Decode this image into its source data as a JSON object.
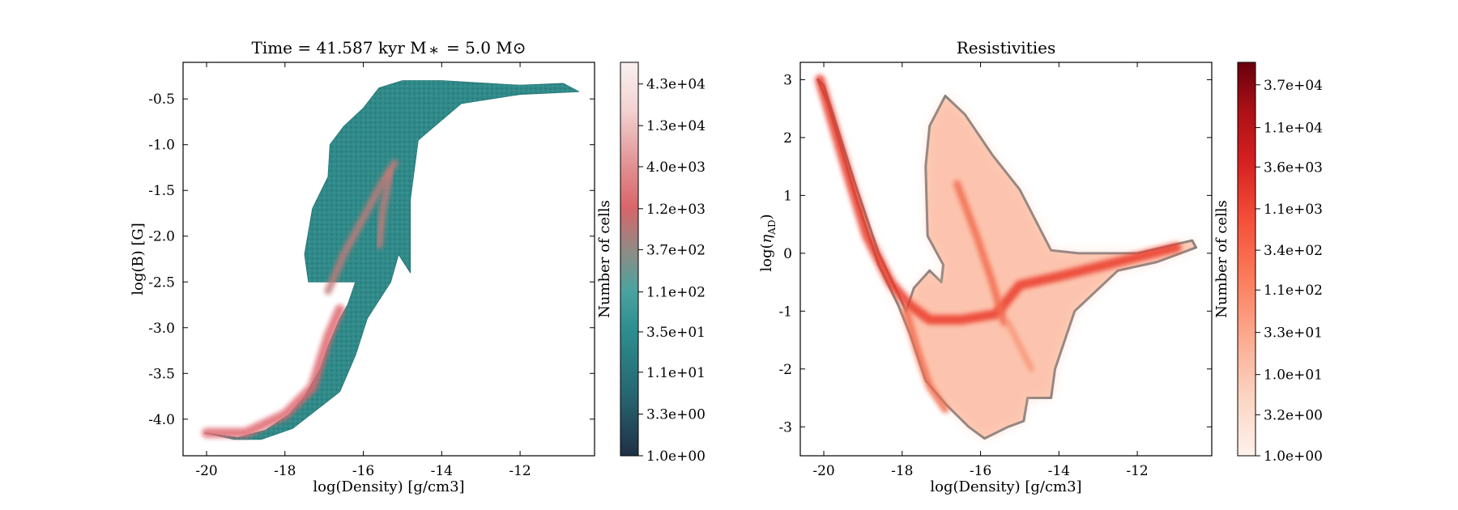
{
  "chart_data": [
    {
      "type": "heatmap",
      "title": "Time = 41.587 kyr    M$_*$ = 5.0 M$_\\odot$",
      "title_display": "Time = 41.587 kyr    M ⁎  = 5.0 M⊙",
      "xlabel": "log(Density) [g/cm3]",
      "ylabel": "log(B) [G]",
      "xlim": [
        -20.6,
        -10.1
      ],
      "ylim": [
        -4.4,
        -0.1
      ],
      "xticks": [
        -20,
        -18,
        -16,
        -14,
        -12
      ],
      "yticks": [
        -4.0,
        -3.5,
        -3.0,
        -2.5,
        -2.0,
        -1.5,
        -1.0,
        -0.5
      ],
      "yticklabels": [
        "-4.0",
        "-3.5",
        "-3.0",
        "-2.5",
        "-2.0",
        "-1.5",
        "-1.0",
        "-0.5"
      ],
      "colorbar": {
        "label": "Number of cells",
        "scale": "log",
        "range": [
          1.0,
          80000
        ],
        "ticks": [
          "1.0e+00",
          "3.3e+00",
          "1.1e+01",
          "3.5e+01",
          "1.1e+02",
          "3.7e+02",
          "1.2e+03",
          "4.0e+03",
          "1.3e+04",
          "4.3e+04"
        ],
        "colormap": [
          "#1f3045",
          "#26656f",
          "#2d8e8e",
          "#4aa39f",
          "#8f8b85",
          "#d8656a",
          "#e39b9c",
          "#f3d3d3",
          "#faf0f0"
        ]
      },
      "region_outline": [
        [
          -20.05,
          -4.15
        ],
        [
          -19.2,
          -4.2
        ],
        [
          -18.5,
          -4.12
        ],
        [
          -17.9,
          -3.95
        ],
        [
          -17.5,
          -3.75
        ],
        [
          -17.1,
          -3.45
        ],
        [
          -16.9,
          -3.2
        ],
        [
          -16.6,
          -2.9
        ],
        [
          -16.4,
          -2.75
        ],
        [
          -16.2,
          -2.5
        ],
        [
          -17.4,
          -2.5
        ],
        [
          -17.5,
          -2.2
        ],
        [
          -17.3,
          -1.7
        ],
        [
          -16.9,
          -1.35
        ],
        [
          -16.85,
          -1.0
        ],
        [
          -16.5,
          -0.8
        ],
        [
          -16.0,
          -0.6
        ],
        [
          -15.6,
          -0.38
        ],
        [
          -15.0,
          -0.3
        ],
        [
          -14.0,
          -0.3
        ],
        [
          -12.0,
          -0.35
        ],
        [
          -10.9,
          -0.33
        ],
        [
          -10.5,
          -0.42
        ],
        [
          -12.0,
          -0.45
        ],
        [
          -13.5,
          -0.55
        ],
        [
          -14.6,
          -0.95
        ],
        [
          -14.8,
          -1.6
        ],
        [
          -14.8,
          -2.4
        ],
        [
          -15.1,
          -2.2
        ],
        [
          -15.3,
          -2.5
        ],
        [
          -15.6,
          -2.7
        ],
        [
          -15.9,
          -2.9
        ],
        [
          -16.2,
          -3.3
        ],
        [
          -16.6,
          -3.7
        ],
        [
          -17.2,
          -3.9
        ],
        [
          -17.8,
          -4.1
        ],
        [
          -18.6,
          -4.22
        ],
        [
          -19.3,
          -4.22
        ]
      ],
      "ridges": [
        {
          "points": [
            [
              -20.0,
              -4.15
            ],
            [
              -19.0,
              -4.15
            ],
            [
              -18.0,
              -3.95
            ],
            [
              -17.3,
              -3.65
            ],
            [
              -16.9,
              -3.1
            ],
            [
              -16.6,
              -2.8
            ]
          ],
          "level": "high"
        },
        {
          "points": [
            [
              -16.9,
              -2.6
            ],
            [
              -16.5,
              -2.2
            ],
            [
              -16.0,
              -1.8
            ],
            [
              -15.5,
              -1.4
            ],
            [
              -15.2,
              -1.2
            ]
          ],
          "level": "medium"
        },
        {
          "points": [
            [
              -15.3,
              -1.3
            ],
            [
              -15.5,
              -1.7
            ],
            [
              -15.6,
              -2.1
            ]
          ],
          "level": "medium"
        }
      ]
    },
    {
      "type": "heatmap",
      "title": "Resistivities",
      "xlabel": "log(Density) [g/cm3]",
      "ylabel": "log($\\eta_{\\rm AD}$)",
      "ylabel_display": "log(ηAD)",
      "xlim": [
        -20.6,
        -10.1
      ],
      "ylim": [
        -3.5,
        3.3
      ],
      "xticks": [
        -20,
        -18,
        -16,
        -14,
        -12
      ],
      "yticks": [
        -3,
        -2,
        -1,
        0,
        1,
        2,
        3
      ],
      "colorbar": {
        "label": "Number of cells",
        "scale": "log",
        "range": [
          1.0,
          70000
        ],
        "ticks": [
          "1.0e+00",
          "3.2e+00",
          "1.0e+01",
          "3.3e+01",
          "1.1e+02",
          "3.4e+02",
          "1.1e+03",
          "3.6e+03",
          "1.1e+04",
          "3.7e+04"
        ],
        "colormap": [
          "#fff2ec",
          "#fcd4c2",
          "#fcab90",
          "#fb7c5c",
          "#f44f39",
          "#d42020",
          "#aa1016",
          "#67000d"
        ]
      },
      "region_outline": [
        [
          -20.15,
          3.0
        ],
        [
          -20.0,
          2.9
        ],
        [
          -19.2,
          1.2
        ],
        [
          -18.6,
          0.0
        ],
        [
          -18.1,
          -0.7
        ],
        [
          -17.9,
          -1.0
        ],
        [
          -17.7,
          -0.6
        ],
        [
          -17.3,
          -0.3
        ],
        [
          -17.0,
          -0.5
        ],
        [
          -16.95,
          -0.2
        ],
        [
          -17.35,
          0.3
        ],
        [
          -17.4,
          1.5
        ],
        [
          -17.3,
          2.2
        ],
        [
          -16.9,
          2.72
        ],
        [
          -16.4,
          2.4
        ],
        [
          -15.7,
          1.7
        ],
        [
          -15.0,
          1.1
        ],
        [
          -14.2,
          0.05
        ],
        [
          -13.5,
          0.0
        ],
        [
          -12.0,
          0.0
        ],
        [
          -10.6,
          0.22
        ],
        [
          -10.5,
          0.1
        ],
        [
          -10.9,
          0.0
        ],
        [
          -11.5,
          -0.15
        ],
        [
          -12.5,
          -0.3
        ],
        [
          -13.6,
          -1.0
        ],
        [
          -14.1,
          -2.0
        ],
        [
          -14.2,
          -2.5
        ],
        [
          -14.8,
          -2.5
        ],
        [
          -14.9,
          -2.9
        ],
        [
          -15.3,
          -3.0
        ],
        [
          -15.9,
          -3.2
        ],
        [
          -16.3,
          -3.0
        ],
        [
          -16.9,
          -2.6
        ],
        [
          -17.4,
          -2.2
        ],
        [
          -17.8,
          -1.4
        ],
        [
          -18.1,
          -0.9
        ],
        [
          -18.6,
          -0.2
        ],
        [
          -19.2,
          1.0
        ],
        [
          -19.9,
          2.6
        ]
      ],
      "ridges": [
        {
          "points": [
            [
              -20.1,
              3.0
            ],
            [
              -19.4,
              1.4
            ],
            [
              -18.9,
              0.3
            ],
            [
              -18.3,
              -0.5
            ],
            [
              -17.8,
              -0.9
            ],
            [
              -17.3,
              -1.15
            ],
            [
              -16.5,
              -1.15
            ],
            [
              -15.6,
              -1.05
            ],
            [
              -15.0,
              -0.55
            ],
            [
              -14.0,
              -0.4
            ],
            [
              -12.5,
              -0.15
            ],
            [
              -11.0,
              0.1
            ]
          ],
          "level": "high"
        },
        {
          "points": [
            [
              -16.6,
              1.2
            ],
            [
              -16.1,
              0.3
            ],
            [
              -15.7,
              -0.5
            ],
            [
              -15.4,
              -1.2
            ]
          ],
          "level": "medium"
        },
        {
          "points": [
            [
              -17.9,
              -1.0
            ],
            [
              -17.6,
              -1.7
            ],
            [
              -17.3,
              -2.3
            ],
            [
              -16.9,
              -2.7
            ]
          ],
          "level": "medium"
        },
        {
          "points": [
            [
              -15.3,
              -1.2
            ],
            [
              -15.0,
              -1.6
            ],
            [
              -14.7,
              -2.0
            ]
          ],
          "level": "low"
        }
      ]
    }
  ]
}
